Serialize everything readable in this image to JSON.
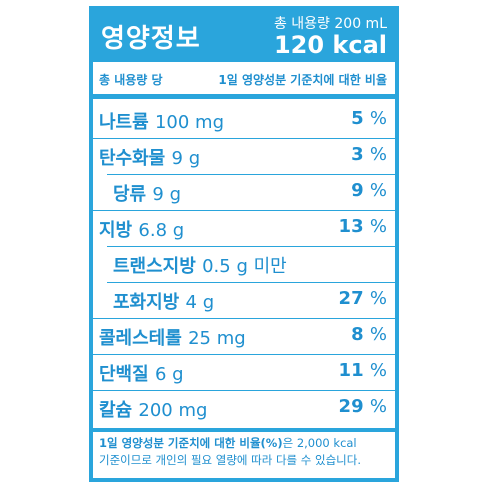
{
  "header": {
    "title": "영양정보",
    "serving": "총 내용량 200 mL",
    "calories": "120 kcal"
  },
  "subheader": {
    "left": "총 내용량 당",
    "right": "1일 영양성분 기준치에 대한 비율"
  },
  "rows": [
    {
      "name": "나트륨",
      "amount": "100 mg",
      "percent": "5",
      "unit": "%"
    },
    {
      "name": "탄수화물",
      "amount": "9 g",
      "percent": "3",
      "unit": "%"
    },
    {
      "name": "당류",
      "amount": "9 g",
      "percent": "9",
      "unit": "%"
    },
    {
      "name": "지방",
      "amount": "6.8 g",
      "percent": "13",
      "unit": "%"
    },
    {
      "name": "트랜스지방",
      "amount": "0.5 g 미만",
      "percent": "",
      "unit": ""
    },
    {
      "name": "포화지방",
      "amount": "4 g",
      "percent": "27",
      "unit": "%"
    },
    {
      "name": "콜레스테롤",
      "amount": "25 mg",
      "percent": "8",
      "unit": "%"
    },
    {
      "name": "단백질",
      "amount": "6 g",
      "percent": "11",
      "unit": "%"
    },
    {
      "name": "칼슘",
      "amount": "200 mg",
      "percent": "29",
      "unit": "%"
    }
  ],
  "footnote": {
    "bold_part": "1일 영양성분 기준치에 대한 비율(%)",
    "rest_line1": "은 2,000 kcal",
    "line2": "기준이므로 개인의 필요 열량에 따라 다를 수 있습니다."
  },
  "colors": {
    "accent": "#2aa5dc",
    "text": "#1f8fcf"
  }
}
